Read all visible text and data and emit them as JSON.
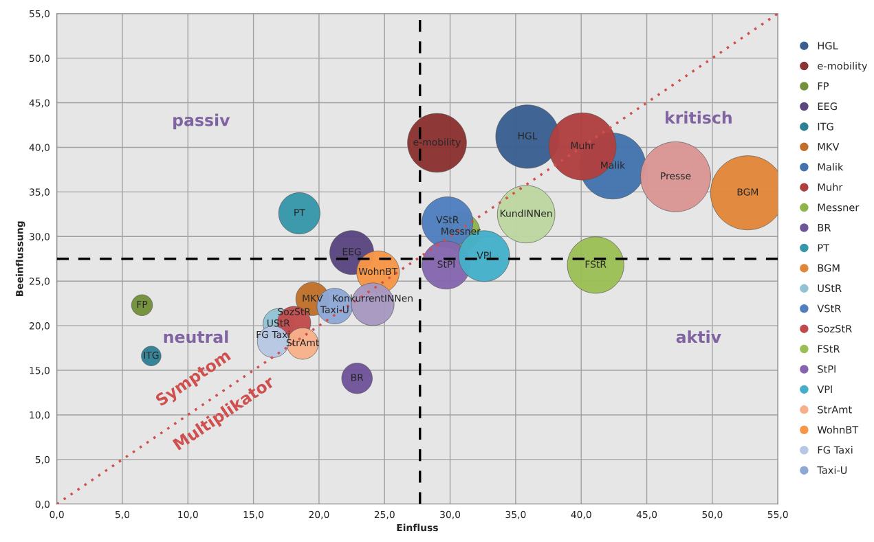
{
  "chart_data": {
    "type": "bubble",
    "xlabel": "Einfluss",
    "ylabel": "Beeinflussung",
    "xlim": [
      0,
      55
    ],
    "ylim": [
      0,
      55
    ],
    "xticks": [
      {
        "value": 0,
        "label": "0,0"
      },
      {
        "value": 5,
        "label": "5,0"
      },
      {
        "value": 10,
        "label": "10,0"
      },
      {
        "value": 15,
        "label": "15,0"
      },
      {
        "value": 20,
        "label": "20,0"
      },
      {
        "value": 25,
        "label": "25,0"
      },
      {
        "value": 30,
        "label": "30,0"
      },
      {
        "value": 35,
        "label": "35,0"
      },
      {
        "value": 40,
        "label": "40,0"
      },
      {
        "value": 45,
        "label": "45,0"
      },
      {
        "value": 50,
        "label": "50,0"
      },
      {
        "value": 55,
        "label": "55,0"
      }
    ],
    "yticks": [
      {
        "value": 0,
        "label": "0,0"
      },
      {
        "value": 5,
        "label": "5,0"
      },
      {
        "value": 10,
        "label": "10,0"
      },
      {
        "value": 15,
        "label": "15,0"
      },
      {
        "value": 20,
        "label": "20,0"
      },
      {
        "value": 25,
        "label": "25,0"
      },
      {
        "value": 30,
        "label": "30,0"
      },
      {
        "value": 35,
        "label": "35,0"
      },
      {
        "value": 40,
        "label": "40,0"
      },
      {
        "value": 45,
        "label": "45,0"
      },
      {
        "value": 50,
        "label": "50,0"
      },
      {
        "value": 55,
        "label": "55,0"
      }
    ],
    "grid": true,
    "legend": "right",
    "series": [
      {
        "name": "HGL",
        "color": "#3a5f8f",
        "x": [
          35.9
        ],
        "values": [
          41.2
        ],
        "sizes": [
          0.73
        ]
      },
      {
        "name": "e-mobility",
        "color": "#8b3232",
        "x": [
          29.0
        ],
        "values": [
          40.5
        ],
        "sizes": [
          0.63
        ]
      },
      {
        "name": "FP",
        "color": "#72913a",
        "x": [
          6.5
        ],
        "values": [
          22.3
        ],
        "sizes": [
          0.08
        ]
      },
      {
        "name": "EEG",
        "color": "#5b4680",
        "x": [
          22.5
        ],
        "values": [
          28.2
        ],
        "sizes": [
          0.35
        ]
      },
      {
        "name": "ITG",
        "color": "#2e8094",
        "x": [
          7.2
        ],
        "values": [
          16.6
        ],
        "sizes": [
          0.07
        ]
      },
      {
        "name": "MKV",
        "color": "#c0702a",
        "x": [
          19.5
        ],
        "values": [
          23.0
        ],
        "sizes": [
          0.2
        ]
      },
      {
        "name": "Malik",
        "color": "#4373ad",
        "x": [
          42.4
        ],
        "values": [
          37.9
        ],
        "sizes": [
          0.79
        ]
      },
      {
        "name": "Muhr",
        "color": "#b04040",
        "x": [
          40.1
        ],
        "values": [
          40.1
        ],
        "sizes": [
          0.82
        ]
      },
      {
        "name": "Messner",
        "color": "#8db54a",
        "x": [
          30.8
        ],
        "values": [
          30.5
        ],
        "sizes": [
          0.27
        ]
      },
      {
        "name": "BR",
        "color": "#6f559a",
        "x": [
          22.9
        ],
        "values": [
          14.1
        ],
        "sizes": [
          0.17
        ]
      },
      {
        "name": "PT",
        "color": "#3797aa",
        "x": [
          18.5
        ],
        "values": [
          32.6
        ],
        "sizes": [
          0.31
        ]
      },
      {
        "name": "BGM",
        "color": "#e0863a",
        "x": [
          52.7
        ],
        "values": [
          34.9
        ],
        "sizes": [
          1
        ]
      },
      {
        "name": "UStR",
        "color": "#92c3d4",
        "x": [
          16.9
        ],
        "values": [
          20.2
        ],
        "sizes": [
          0.17
        ]
      },
      {
        "name": "VStR",
        "color": "#4f7fc0",
        "x": [
          29.8
        ],
        "values": [
          31.6
        ],
        "sizes": [
          0.47
        ]
      },
      {
        "name": "SozStR",
        "color": "#c04b4b",
        "x": [
          18.1
        ],
        "values": [
          20.3
        ],
        "sizes": [
          0.2
        ]
      },
      {
        "name": "FStR",
        "color": "#9bbf57",
        "x": [
          41.1
        ],
        "values": [
          26.8
        ],
        "sizes": [
          0.58
        ]
      },
      {
        "name": "StPl",
        "color": "#8566ae",
        "x": [
          29.7
        ],
        "values": [
          26.8
        ],
        "sizes": [
          0.42
        ]
      },
      {
        "name": "VPl",
        "color": "#45afc9",
        "x": [
          32.6
        ],
        "values": [
          27.8
        ],
        "sizes": [
          0.47
        ]
      },
      {
        "name": "StrAmt",
        "color": "#f7b08a",
        "x": [
          18.75
        ],
        "values": [
          18.0
        ],
        "sizes": [
          0.18
        ]
      },
      {
        "name": "WohnBT",
        "color": "#f79646",
        "x": [
          24.5
        ],
        "values": [
          26.0
        ],
        "sizes": [
          0.33
        ]
      },
      {
        "name": "FG Taxi",
        "color": "#b7c6e2",
        "x": [
          16.5
        ],
        "values": [
          18.2
        ],
        "sizes": [
          0.18
        ]
      },
      {
        "name": "Taxi-U",
        "color": "#8da7d6",
        "x": [
          21.2
        ],
        "values": [
          22.2
        ],
        "sizes": [
          0.23
        ]
      },
      {
        "name": "KonkurrentINNen",
        "color": "#a698c0",
        "x": [
          24.1
        ],
        "values": [
          22.4
        ],
        "sizes": [
          0.33
        ]
      },
      {
        "name": "KundINNen",
        "color": "#bdd6a0",
        "x": [
          35.8
        ],
        "values": [
          32.5
        ],
        "sizes": [
          0.6
        ]
      },
      {
        "name": "Presse",
        "color": "#d99594",
        "x": [
          47.2
        ],
        "values": [
          36.7
        ],
        "sizes": [
          0.89
        ]
      },
      {
        "type": "line",
        "color": "#d05050",
        "line_style": "dotted",
        "x": [
          0,
          55
        ],
        "values": [
          0,
          55
        ]
      }
    ],
    "ref_lines": [
      {
        "axis": "x",
        "value": 27.7,
        "color": "#000000",
        "line_style": "dashed"
      },
      {
        "axis": "y",
        "value": 27.5,
        "color": "#000000",
        "line_style": "dashed"
      }
    ],
    "annotations": [
      "passiv",
      "kritisch",
      "neutral",
      "aktiv",
      "Symptom",
      "Multiplikator"
    ]
  }
}
